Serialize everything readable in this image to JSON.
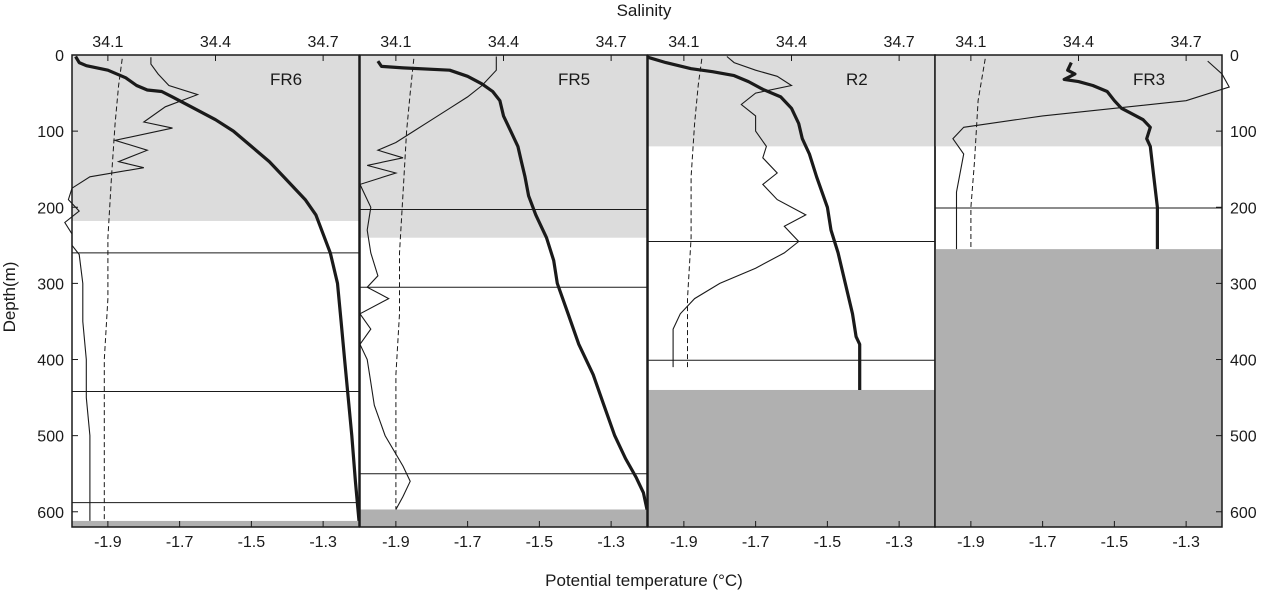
{
  "chart_data": {
    "type": "line",
    "x_axis_bottom": {
      "label": "Potential temperature (°C)",
      "ticks": [
        -1.9,
        -1.7,
        -1.5,
        -1.3
      ],
      "tick_labels": [
        "-1.9",
        "-1.7",
        "-1.5",
        "-1.3"
      ],
      "range": [
        -2.0,
        -1.2
      ]
    },
    "x_axis_top": {
      "label": "Salinity",
      "ticks": [
        34.1,
        34.4,
        34.7
      ],
      "tick_labels": [
        "34.1",
        "34.4",
        "34.7"
      ],
      "range": [
        34.0,
        34.8
      ]
    },
    "y_axis": {
      "label": "Depth(m)",
      "ticks": [
        0,
        100,
        200,
        300,
        400,
        500,
        600
      ],
      "tick_labels": [
        "0",
        "100",
        "200",
        "300",
        "400",
        "500",
        "600"
      ],
      "range": [
        0,
        620
      ],
      "inverted": true
    },
    "panels": [
      {
        "station": "FR6",
        "light_shade_depth": [
          0,
          218
        ],
        "seabed_depth": 612,
        "layer_lines": [
          260,
          442,
          588
        ],
        "temperature_thick": [
          [
            -1.99,
            2
          ],
          [
            -1.98,
            10
          ],
          [
            -1.96,
            14
          ],
          [
            -1.9,
            20
          ],
          [
            -1.85,
            30
          ],
          [
            -1.82,
            40
          ],
          [
            -1.79,
            46
          ],
          [
            -1.75,
            48
          ],
          [
            -1.72,
            55
          ],
          [
            -1.66,
            70
          ],
          [
            -1.6,
            85
          ],
          [
            -1.55,
            100
          ],
          [
            -1.5,
            120
          ],
          [
            -1.45,
            140
          ],
          [
            -1.4,
            165
          ],
          [
            -1.35,
            190
          ],
          [
            -1.32,
            210
          ],
          [
            -1.3,
            235
          ],
          [
            -1.28,
            260
          ],
          [
            -1.26,
            300
          ],
          [
            -1.25,
            350
          ],
          [
            -1.24,
            400
          ],
          [
            -1.23,
            450
          ],
          [
            -1.22,
            500
          ],
          [
            -1.21,
            560
          ],
          [
            -1.2,
            612
          ]
        ],
        "salinity_thin": [
          [
            34.22,
            3
          ],
          [
            34.22,
            12
          ],
          [
            34.24,
            25
          ],
          [
            34.27,
            40
          ],
          [
            34.35,
            52
          ],
          [
            34.26,
            68
          ],
          [
            34.2,
            88
          ],
          [
            34.28,
            96
          ],
          [
            34.12,
            112
          ],
          [
            34.21,
            125
          ],
          [
            34.13,
            140
          ],
          [
            34.2,
            148
          ],
          [
            34.05,
            160
          ],
          [
            34.0,
            175
          ],
          [
            33.99,
            190
          ],
          [
            34.02,
            205
          ],
          [
            33.98,
            220
          ],
          [
            34.0,
            235
          ],
          [
            34.0,
            250
          ],
          [
            34.02,
            262
          ],
          [
            34.03,
            300
          ],
          [
            34.03,
            350
          ],
          [
            34.04,
            400
          ],
          [
            34.04,
            450
          ],
          [
            34.05,
            500
          ],
          [
            34.05,
            550
          ],
          [
            34.05,
            612
          ]
        ],
        "freezing_dashed": [
          [
            -1.86,
            5
          ],
          [
            -1.87,
            40
          ],
          [
            -1.88,
            90
          ],
          [
            -1.89,
            160
          ],
          [
            -1.9,
            240
          ],
          [
            -1.9,
            320
          ],
          [
            -1.91,
            400
          ],
          [
            -1.91,
            480
          ],
          [
            -1.91,
            550
          ],
          [
            -1.91,
            612
          ]
        ]
      },
      {
        "station": "FR5",
        "light_shade_depth": [
          0,
          240
        ],
        "seabed_depth": 597,
        "layer_lines": [
          203,
          305,
          550
        ],
        "temperature_thick": [
          [
            -1.95,
            8
          ],
          [
            -1.94,
            15
          ],
          [
            -1.88,
            17
          ],
          [
            -1.75,
            20
          ],
          [
            -1.7,
            28
          ],
          [
            -1.66,
            38
          ],
          [
            -1.63,
            48
          ],
          [
            -1.61,
            60
          ],
          [
            -1.6,
            80
          ],
          [
            -1.58,
            100
          ],
          [
            -1.56,
            120
          ],
          [
            -1.55,
            140
          ],
          [
            -1.54,
            160
          ],
          [
            -1.53,
            185
          ],
          [
            -1.51,
            210
          ],
          [
            -1.48,
            240
          ],
          [
            -1.46,
            270
          ],
          [
            -1.45,
            300
          ],
          [
            -1.42,
            340
          ],
          [
            -1.39,
            380
          ],
          [
            -1.35,
            420
          ],
          [
            -1.32,
            460
          ],
          [
            -1.29,
            500
          ],
          [
            -1.26,
            530
          ],
          [
            -1.23,
            555
          ],
          [
            -1.21,
            575
          ],
          [
            -1.2,
            597
          ]
        ],
        "salinity_thin": [
          [
            34.38,
            2
          ],
          [
            34.38,
            20
          ],
          [
            34.34,
            40
          ],
          [
            34.3,
            55
          ],
          [
            34.25,
            70
          ],
          [
            34.2,
            85
          ],
          [
            34.15,
            100
          ],
          [
            34.1,
            115
          ],
          [
            34.05,
            125
          ],
          [
            34.12,
            135
          ],
          [
            34.02,
            145
          ],
          [
            34.1,
            155
          ],
          [
            34.0,
            170
          ],
          [
            34.03,
            200
          ],
          [
            34.02,
            230
          ],
          [
            34.03,
            260
          ],
          [
            34.05,
            290
          ],
          [
            34.02,
            305
          ],
          [
            34.08,
            320
          ],
          [
            34.0,
            340
          ],
          [
            34.03,
            360
          ],
          [
            34.0,
            380
          ],
          [
            34.02,
            400
          ],
          [
            34.03,
            430
          ],
          [
            34.04,
            460
          ],
          [
            34.07,
            500
          ],
          [
            34.12,
            540
          ],
          [
            34.14,
            560
          ],
          [
            34.12,
            580
          ],
          [
            34.1,
            597
          ]
        ],
        "freezing_dashed": [
          [
            -1.85,
            5
          ],
          [
            -1.86,
            50
          ],
          [
            -1.87,
            100
          ],
          [
            -1.88,
            180
          ],
          [
            -1.89,
            260
          ],
          [
            -1.89,
            340
          ],
          [
            -1.9,
            420
          ],
          [
            -1.9,
            500
          ],
          [
            -1.9,
            597
          ]
        ]
      },
      {
        "station": "R2",
        "light_shade_depth": [
          0,
          120
        ],
        "seabed_depth": 440,
        "layer_lines": [
          245,
          401
        ],
        "temperature_thick": [
          [
            -2.0,
            3
          ],
          [
            -1.95,
            10
          ],
          [
            -1.88,
            18
          ],
          [
            -1.82,
            22
          ],
          [
            -1.76,
            27
          ],
          [
            -1.72,
            35
          ],
          [
            -1.68,
            45
          ],
          [
            -1.63,
            55
          ],
          [
            -1.6,
            70
          ],
          [
            -1.58,
            90
          ],
          [
            -1.57,
            110
          ],
          [
            -1.55,
            130
          ],
          [
            -1.53,
            160
          ],
          [
            -1.5,
            200
          ],
          [
            -1.49,
            230
          ],
          [
            -1.47,
            260
          ],
          [
            -1.45,
            300
          ],
          [
            -1.43,
            340
          ],
          [
            -1.42,
            370
          ],
          [
            -1.41,
            380
          ],
          [
            -1.41,
            400
          ],
          [
            -1.41,
            440
          ]
        ],
        "salinity_thin": [
          [
            34.22,
            2
          ],
          [
            34.24,
            10
          ],
          [
            34.3,
            20
          ],
          [
            34.36,
            28
          ],
          [
            34.4,
            40
          ],
          [
            34.3,
            50
          ],
          [
            34.26,
            65
          ],
          [
            34.3,
            80
          ],
          [
            34.3,
            100
          ],
          [
            34.33,
            120
          ],
          [
            34.32,
            135
          ],
          [
            34.36,
            155
          ],
          [
            34.32,
            170
          ],
          [
            34.36,
            190
          ],
          [
            34.44,
            210
          ],
          [
            34.38,
            225
          ],
          [
            34.42,
            245
          ],
          [
            34.38,
            260
          ],
          [
            34.3,
            280
          ],
          [
            34.2,
            300
          ],
          [
            34.13,
            320
          ],
          [
            34.09,
            340
          ],
          [
            34.07,
            360
          ],
          [
            34.07,
            390
          ],
          [
            34.07,
            410
          ]
        ],
        "freezing_dashed": [
          [
            -1.85,
            5
          ],
          [
            -1.86,
            40
          ],
          [
            -1.87,
            90
          ],
          [
            -1.88,
            160
          ],
          [
            -1.88,
            240
          ],
          [
            -1.89,
            320
          ],
          [
            -1.89,
            410
          ]
        ]
      },
      {
        "station": "FR3",
        "light_shade_depth": [
          0,
          120
        ],
        "seabed_depth": 255,
        "layer_lines": [
          201
        ],
        "temperature_thick": [
          [
            -1.62,
            10
          ],
          [
            -1.63,
            20
          ],
          [
            -1.61,
            25
          ],
          [
            -1.64,
            32
          ],
          [
            -1.6,
            35
          ],
          [
            -1.56,
            40
          ],
          [
            -1.52,
            48
          ],
          [
            -1.5,
            60
          ],
          [
            -1.48,
            70
          ],
          [
            -1.46,
            75
          ],
          [
            -1.42,
            85
          ],
          [
            -1.4,
            95
          ],
          [
            -1.41,
            110
          ],
          [
            -1.4,
            120
          ],
          [
            -1.39,
            160
          ],
          [
            -1.38,
            200
          ],
          [
            -1.38,
            255
          ]
        ],
        "salinity_thin": [
          [
            34.76,
            8
          ],
          [
            34.8,
            25
          ],
          [
            34.82,
            42
          ],
          [
            34.7,
            60
          ],
          [
            34.3,
            80
          ],
          [
            34.08,
            95
          ],
          [
            34.05,
            110
          ],
          [
            34.08,
            130
          ],
          [
            34.06,
            180
          ],
          [
            34.06,
            230
          ],
          [
            34.06,
            255
          ]
        ],
        "freezing_dashed": [
          [
            -1.86,
            5
          ],
          [
            -1.88,
            60
          ],
          [
            -1.89,
            140
          ],
          [
            -1.9,
            200
          ],
          [
            -1.9,
            255
          ]
        ]
      }
    ]
  },
  "colors": {
    "light_shade": "#dcdcdc",
    "seabed": "#b0b0b0",
    "line": "#1a1a1a"
  }
}
